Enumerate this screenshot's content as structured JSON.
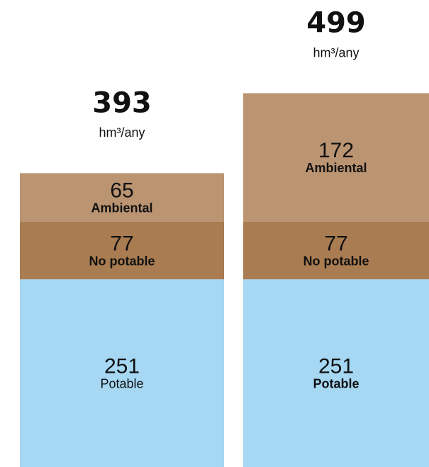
{
  "chart_data": {
    "type": "stacked_bar",
    "categories": [
      null,
      null
    ],
    "series": [
      {
        "name": "Potable",
        "color": "#a6d8f4",
        "values": [
          251,
          251
        ]
      },
      {
        "name": "No potable",
        "color": "#a97c51",
        "values": [
          77,
          77
        ]
      },
      {
        "name": "Ambiental",
        "color": "#bb9472",
        "values": [
          65,
          172
        ]
      }
    ],
    "totals": [
      393,
      499
    ],
    "unit": "hm³/any"
  }
}
